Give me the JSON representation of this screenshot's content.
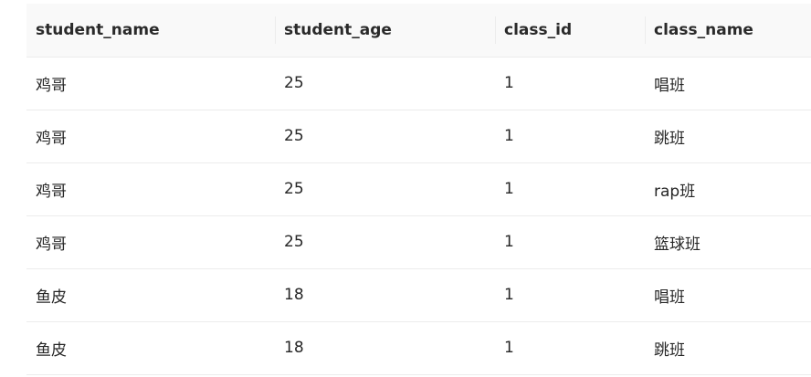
{
  "table": {
    "columns": [
      "student_name",
      "student_age",
      "class_id",
      "class_name"
    ],
    "rows": [
      [
        "鸡哥",
        "25",
        "1",
        "唱班"
      ],
      [
        "鸡哥",
        "25",
        "1",
        "跳班"
      ],
      [
        "鸡哥",
        "25",
        "1",
        "rap班"
      ],
      [
        "鸡哥",
        "25",
        "1",
        "篮球班"
      ],
      [
        "鱼皮",
        "18",
        "1",
        "唱班"
      ],
      [
        "鱼皮",
        "18",
        "1",
        "跳班"
      ]
    ]
  }
}
